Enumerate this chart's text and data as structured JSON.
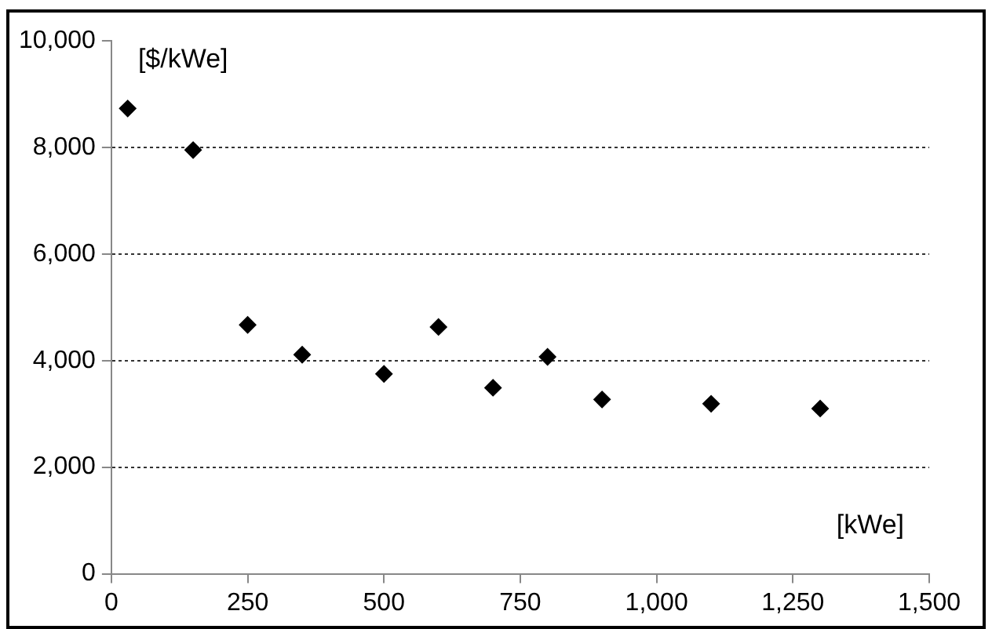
{
  "chart_data": {
    "type": "scatter",
    "xlabel": "[kWe]",
    "ylabel": "[$/kWe]",
    "x": [
      30,
      150,
      250,
      350,
      500,
      600,
      700,
      800,
      900,
      1100,
      1300
    ],
    "values": [
      8730,
      7950,
      4670,
      4110,
      3750,
      4630,
      3490,
      4070,
      3270,
      3190,
      3100
    ],
    "color": "#000000",
    "marker": "diamond",
    "xlim": [
      0,
      1500
    ],
    "xticks": [
      0,
      250,
      500,
      750,
      {
        "value": 1000,
        "label": "1,000"
      },
      {
        "value": 1250,
        "label": "1,250"
      },
      {
        "value": 1500,
        "label": "1,500"
      }
    ],
    "ylim": [
      0,
      10000
    ],
    "yticks": [
      0,
      {
        "value": 2000,
        "label": "2,000"
      },
      {
        "value": 4000,
        "label": "4,000"
      },
      {
        "value": 6000,
        "label": "6,000"
      },
      {
        "value": 8000,
        "label": "8,000"
      },
      {
        "value": 10000,
        "label": "10,000"
      }
    ],
    "grid": "y",
    "legend": false
  }
}
